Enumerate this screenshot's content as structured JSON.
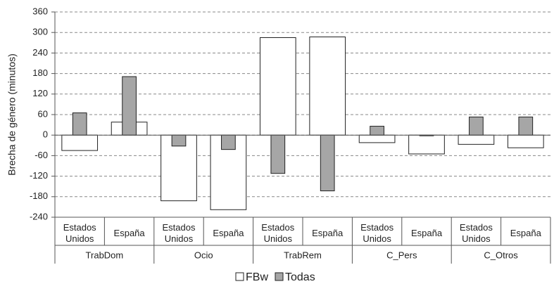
{
  "chart_data": {
    "type": "bar",
    "y_label": "Brecha de género (minutos)",
    "categories": [
      "Estados Unidos",
      "España",
      "Estados Unidos",
      "España",
      "Estados Unidos",
      "España",
      "Estados Unidos",
      "España",
      "Estados Unidos",
      "España"
    ],
    "groups": [
      "TrabDom",
      "Ocio",
      "TrabRem",
      "C_Pers",
      "C_Otros"
    ],
    "series": [
      {
        "name": "FBw",
        "color": "#ffffff",
        "values": [
          -45,
          38,
          -192,
          -218,
          285,
          287,
          -22,
          -55,
          -27,
          -37
        ]
      },
      {
        "name": "Todas",
        "color": "#a6a6a6",
        "values": [
          65,
          171,
          -32,
          -42,
          -112,
          -163,
          26,
          -2,
          53,
          53
        ]
      }
    ],
    "ylim": [
      -240,
      360
    ],
    "yticks": [
      -240,
      -180,
      -120,
      -60,
      0,
      60,
      120,
      180,
      240,
      300,
      360
    ],
    "grid": true
  }
}
